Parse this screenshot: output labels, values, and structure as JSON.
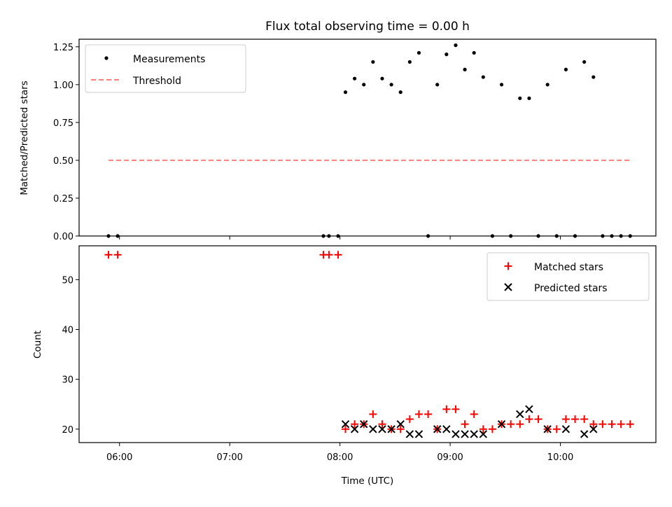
{
  "chart_data": [
    {
      "type": "scatter",
      "title": "Flux total observing time = 0.00 h",
      "xlabel": "",
      "ylabel": "Matched/Predicted stars",
      "xlim": [
        "05:38",
        "10:52"
      ],
      "ylim": [
        0,
        1.3
      ],
      "yticks": [
        0.0,
        0.25,
        0.5,
        0.75,
        1.0,
        1.25
      ],
      "ytick_labels": [
        "0.00",
        "0.25",
        "0.50",
        "0.75",
        "1.00",
        "1.25"
      ],
      "grid": false,
      "legend_position": "upper-left",
      "colors": {
        "measurements": "#000000",
        "threshold": "#ff7f7f"
      },
      "series": [
        {
          "name": "Measurements",
          "style": "points",
          "points": [
            [
              "05:54",
              0.0
            ],
            [
              "05:59",
              0.0
            ],
            [
              "07:51",
              0.0
            ],
            [
              "07:54",
              0.0
            ],
            [
              "07:59",
              0.0
            ],
            [
              "08:03",
              0.95
            ],
            [
              "08:08",
              1.04
            ],
            [
              "08:13",
              1.0
            ],
            [
              "08:18",
              1.15
            ],
            [
              "08:23",
              1.04
            ],
            [
              "08:28",
              1.0
            ],
            [
              "08:33",
              0.95
            ],
            [
              "08:38",
              1.15
            ],
            [
              "08:43",
              1.21
            ],
            [
              "08:48",
              0.0
            ],
            [
              "08:53",
              1.0
            ],
            [
              "08:58",
              1.2
            ],
            [
              "09:03",
              1.26
            ],
            [
              "09:08",
              1.1
            ],
            [
              "09:13",
              1.21
            ],
            [
              "09:18",
              1.05
            ],
            [
              "09:23",
              0.0
            ],
            [
              "09:28",
              1.0
            ],
            [
              "09:33",
              0.0
            ],
            [
              "09:38",
              0.91
            ],
            [
              "09:43",
              0.91
            ],
            [
              "09:48",
              0.0
            ],
            [
              "09:53",
              1.0
            ],
            [
              "09:58",
              0.0
            ],
            [
              "10:03",
              1.1
            ],
            [
              "10:08",
              0.0
            ],
            [
              "10:13",
              1.15
            ],
            [
              "10:18",
              1.05
            ],
            [
              "10:23",
              0.0
            ],
            [
              "10:28",
              0.0
            ],
            [
              "10:33",
              0.0
            ],
            [
              "10:38",
              0.0
            ]
          ]
        },
        {
          "name": "Threshold",
          "style": "dashed-line",
          "points": [
            [
              "05:54",
              0.5
            ],
            [
              "10:38",
              0.5
            ]
          ]
        }
      ]
    },
    {
      "type": "scatter",
      "title": "",
      "xlabel": "Time (UTC)",
      "ylabel": "Count",
      "xlim": [
        "05:38",
        "10:52"
      ],
      "ylim": [
        17.3,
        56.8
      ],
      "yticks": [
        20,
        30,
        40,
        50
      ],
      "ytick_labels": [
        "20",
        "30",
        "40",
        "50"
      ],
      "xticks": [
        "06:00",
        "07:00",
        "08:00",
        "09:00",
        "10:00"
      ],
      "xtick_labels": [
        "06:00",
        "07:00",
        "08:00",
        "09:00",
        "10:00"
      ],
      "grid": false,
      "legend_position": "upper-right",
      "colors": {
        "matched": "#ff0000",
        "predicted": "#000000"
      },
      "series": [
        {
          "name": "Matched stars",
          "marker": "plus",
          "points": [
            [
              "05:54",
              55
            ],
            [
              "05:59",
              55
            ],
            [
              "07:51",
              55
            ],
            [
              "07:54",
              55
            ],
            [
              "07:59",
              55
            ],
            [
              "08:03",
              20
            ],
            [
              "08:08",
              21
            ],
            [
              "08:13",
              21
            ],
            [
              "08:18",
              23
            ],
            [
              "08:23",
              21
            ],
            [
              "08:28",
              20
            ],
            [
              "08:33",
              20
            ],
            [
              "08:38",
              22
            ],
            [
              "08:43",
              23
            ],
            [
              "08:48",
              23
            ],
            [
              "08:53",
              20
            ],
            [
              "08:58",
              24
            ],
            [
              "09:03",
              24
            ],
            [
              "09:08",
              21
            ],
            [
              "09:13",
              23
            ],
            [
              "09:18",
              20
            ],
            [
              "09:23",
              20
            ],
            [
              "09:28",
              21
            ],
            [
              "09:33",
              21
            ],
            [
              "09:38",
              21
            ],
            [
              "09:43",
              22
            ],
            [
              "09:48",
              22
            ],
            [
              "09:53",
              20
            ],
            [
              "09:58",
              20
            ],
            [
              "10:03",
              22
            ],
            [
              "10:08",
              22
            ],
            [
              "10:13",
              22
            ],
            [
              "10:18",
              21
            ],
            [
              "10:23",
              21
            ],
            [
              "10:28",
              21
            ],
            [
              "10:33",
              21
            ],
            [
              "10:38",
              21
            ]
          ]
        },
        {
          "name": "Predicted stars",
          "marker": "x",
          "points": [
            [
              "08:03",
              21
            ],
            [
              "08:08",
              20
            ],
            [
              "08:13",
              21
            ],
            [
              "08:18",
              20
            ],
            [
              "08:23",
              20
            ],
            [
              "08:28",
              20
            ],
            [
              "08:33",
              21
            ],
            [
              "08:38",
              19
            ],
            [
              "08:43",
              19
            ],
            [
              "08:53",
              20
            ],
            [
              "08:58",
              20
            ],
            [
              "09:03",
              19
            ],
            [
              "09:08",
              19
            ],
            [
              "09:13",
              19
            ],
            [
              "09:18",
              19
            ],
            [
              "09:28",
              21
            ],
            [
              "09:38",
              23
            ],
            [
              "09:43",
              24
            ],
            [
              "09:53",
              20
            ],
            [
              "10:03",
              20
            ],
            [
              "10:13",
              19
            ],
            [
              "10:18",
              20
            ]
          ]
        }
      ]
    }
  ]
}
